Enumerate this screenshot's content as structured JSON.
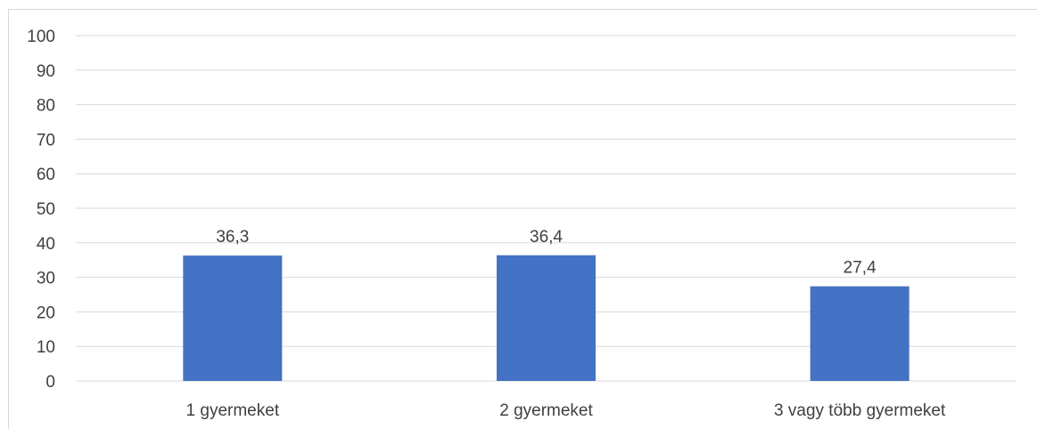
{
  "chart_data": {
    "type": "bar",
    "categories": [
      "1 gyermeket",
      "2 gyermeket",
      "3 vagy több gyermeket"
    ],
    "values": [
      36.3,
      36.4,
      27.4
    ],
    "data_labels": [
      "36,3",
      "36,4",
      "27,4"
    ],
    "title": "",
    "xlabel": "",
    "ylabel": "",
    "ylim": [
      0,
      100
    ],
    "yticks": [
      0,
      10,
      20,
      30,
      40,
      50,
      60,
      70,
      80,
      90,
      100
    ],
    "grid": true,
    "legend": "none",
    "colors": {
      "bar": "#4472c4",
      "grid": "#d9d9d9",
      "text": "#404040"
    }
  }
}
